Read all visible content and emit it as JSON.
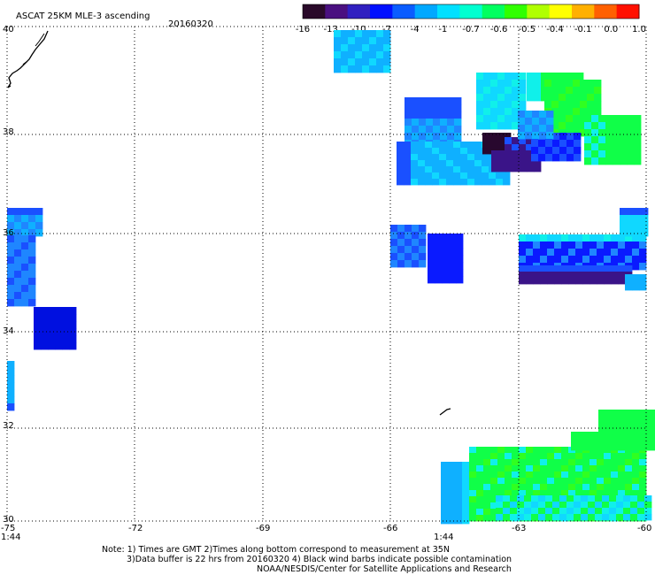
{
  "header": {
    "title": "ASCAT 25KM MLE-3 ascending",
    "date": "20160320"
  },
  "colorbar": {
    "labels": [
      "-16",
      "-13",
      "-10",
      "-7",
      "-4",
      "-1",
      "-0.7",
      "-0.6",
      "-0.5",
      "-0.4",
      "-0.1",
      "0.0",
      "1.0"
    ],
    "colors": [
      "#2a0a2a",
      "#4a1080",
      "#3020c0",
      "#0010ff",
      "#0a5cff",
      "#00a8ff",
      "#00e0ff",
      "#00ffd0",
      "#00ff60",
      "#30ff00",
      "#b0ff00",
      "#ffff00",
      "#ffb000",
      "#ff6000",
      "#ff1000"
    ]
  },
  "axes": {
    "x_labels": [
      "-75",
      "-72",
      "-69",
      "-66",
      "-63",
      "-60"
    ],
    "y_labels": [
      "40",
      "38",
      "36",
      "34",
      "32",
      "30"
    ],
    "time_labels": [
      "1:44",
      "1:44"
    ],
    "time_label_color": "#cc0000"
  },
  "footer": {
    "note_line1": "Note: 1) Times are GMT 2)Times along bottom correspond to measurement at 35N",
    "note_line2": "3)Data buffer is 22 hrs from 20160320 4) Black wind barbs indicate possible contamination",
    "credit": "NOAA/NESDIS/Center for Satellite Applications and Research"
  }
}
